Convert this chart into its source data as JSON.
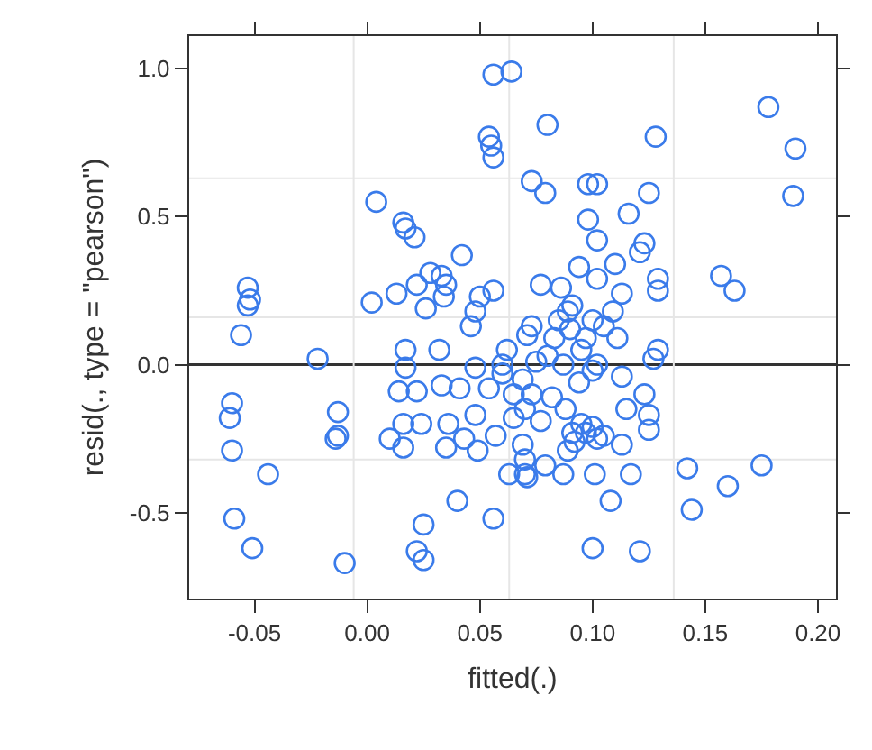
{
  "chart_data": {
    "type": "scatter",
    "xlabel": "fitted(.)",
    "ylabel": "resid(., type = \"pearson\")",
    "xlim": [
      -0.079,
      0.208
    ],
    "ylim": [
      -0.79,
      1.11
    ],
    "xticks": [
      {
        "value": -0.05,
        "label": "-0.05"
      },
      {
        "value": 0,
        "label": "0.00"
      },
      {
        "value": 0.05,
        "label": "0.05"
      },
      {
        "value": 0.1,
        "label": "0.10"
      },
      {
        "value": 0.15,
        "label": "0.15"
      },
      {
        "value": 0.2,
        "label": "0.20"
      }
    ],
    "yticks": [
      {
        "value": -0.5,
        "label": "-0.5"
      },
      {
        "value": 0,
        "label": "0.0"
      },
      {
        "value": 0.5,
        "label": "0.5"
      },
      {
        "value": 1,
        "label": "1.0"
      }
    ],
    "grid": false,
    "marker": "circle",
    "ref_lines": [
      {
        "axis": "y",
        "value": 0,
        "color": "#333333"
      },
      {
        "axis": "x",
        "value": -0.006,
        "color": "#e6e6e6"
      },
      {
        "axis": "x",
        "value": 0.063,
        "color": "#e6e6e6"
      },
      {
        "axis": "x",
        "value": 0.136,
        "color": "#e6e6e6"
      },
      {
        "axis": "y",
        "value": 0.63,
        "color": "#e6e6e6"
      },
      {
        "axis": "y",
        "value": 0.16,
        "color": "#e6e6e6"
      },
      {
        "axis": "y",
        "value": -0.32,
        "color": "#e6e6e6"
      }
    ],
    "series": [
      {
        "color": "#3a7bea",
        "x": [
          0.056,
          0.064,
          0.054,
          0.055,
          0.056,
          0.004,
          0.016,
          0.017,
          0.021,
          0.042,
          0.028,
          0.033,
          0.035,
          -0.053,
          -0.052,
          -0.053,
          0.002,
          0.013,
          0.022,
          0.026,
          0.034,
          0.05,
          0.056,
          0.048,
          0.073,
          0.08,
          0.128,
          0.178,
          0.19,
          0.189,
          0.079,
          0.098,
          0.102,
          0.125,
          0.098,
          0.116,
          0.102,
          0.123,
          0.121,
          0.11,
          0.094,
          0.102,
          0.077,
          0.086,
          0.129,
          0.129,
          0.157,
          0.163,
          0.113,
          0.109,
          0.091,
          0.089,
          -0.056,
          -0.022,
          0.046,
          0.017,
          0.032,
          0.017,
          0.014,
          0.022,
          0.033,
          0.041,
          -0.06,
          -0.061,
          -0.06,
          -0.013,
          -0.013,
          -0.014,
          -0.044,
          -0.059,
          -0.051,
          -0.01,
          0.01,
          0.016,
          0.016,
          0.024,
          0.036,
          0.035,
          0.043,
          0.048,
          0.049,
          0.057,
          0.04,
          0.025,
          0.022,
          0.025,
          0.056,
          0.063,
          0.07,
          0.069,
          0.065,
          0.062,
          0.071,
          0.048,
          0.054,
          0.06,
          0.069,
          0.073,
          0.083,
          0.097,
          0.111,
          0.129,
          0.127,
          0.075,
          0.087,
          0.102,
          0.113,
          0.094,
          0.073,
          0.082,
          0.123,
          0.115,
          0.125,
          0.125,
          0.077,
          0.091,
          0.097,
          0.102,
          0.113,
          0.089,
          0.07,
          0.079,
          0.087,
          0.101,
          0.117,
          0.071,
          0.108,
          0.142,
          0.175,
          0.16,
          0.144,
          0.1,
          0.121,
          0.085,
          0.09,
          0.095,
          0.08,
          0.1,
          0.088,
          0.095,
          0.1,
          0.105,
          0.092,
          0.06,
          0.065,
          0.1,
          0.105,
          0.07
        ],
        "values": [
          0.98,
          0.99,
          0.77,
          0.74,
          0.7,
          0.55,
          0.48,
          0.46,
          0.43,
          0.37,
          0.31,
          0.3,
          0.27,
          0.26,
          0.22,
          0.2,
          0.21,
          0.24,
          0.27,
          0.19,
          0.23,
          0.23,
          0.25,
          0.18,
          0.62,
          0.81,
          0.77,
          0.87,
          0.73,
          0.57,
          0.58,
          0.61,
          0.61,
          0.58,
          0.49,
          0.51,
          0.42,
          0.41,
          0.38,
          0.34,
          0.33,
          0.29,
          0.27,
          0.26,
          0.29,
          0.25,
          0.3,
          0.25,
          0.24,
          0.18,
          0.2,
          0.18,
          0.1,
          0.02,
          0.13,
          0.05,
          0.05,
          -0.01,
          -0.09,
          -0.09,
          -0.07,
          -0.08,
          -0.13,
          -0.18,
          -0.29,
          -0.16,
          -0.24,
          -0.25,
          -0.37,
          -0.52,
          -0.62,
          -0.67,
          -0.25,
          -0.2,
          -0.28,
          -0.2,
          -0.2,
          -0.28,
          -0.25,
          -0.17,
          -0.29,
          -0.24,
          -0.46,
          -0.54,
          -0.63,
          -0.66,
          -0.52,
          -0.37,
          -0.37,
          -0.27,
          -0.18,
          0.05,
          0.1,
          -0.01,
          -0.08,
          -0.03,
          -0.05,
          0.13,
          0.09,
          0.09,
          0.09,
          0.05,
          0.02,
          0.01,
          0.0,
          0.0,
          -0.04,
          -0.06,
          -0.1,
          -0.11,
          -0.1,
          -0.15,
          -0.17,
          -0.22,
          -0.19,
          -0.23,
          -0.23,
          -0.25,
          -0.27,
          -0.29,
          -0.32,
          -0.34,
          -0.37,
          -0.37,
          -0.37,
          -0.38,
          -0.46,
          -0.35,
          -0.34,
          -0.41,
          -0.49,
          -0.62,
          -0.63,
          0.15,
          0.12,
          0.05,
          0.03,
          -0.02,
          -0.15,
          -0.2,
          -0.21,
          -0.24,
          -0.26,
          0.0,
          -0.1,
          0.15,
          0.13,
          -0.15
        ]
      }
    ]
  }
}
